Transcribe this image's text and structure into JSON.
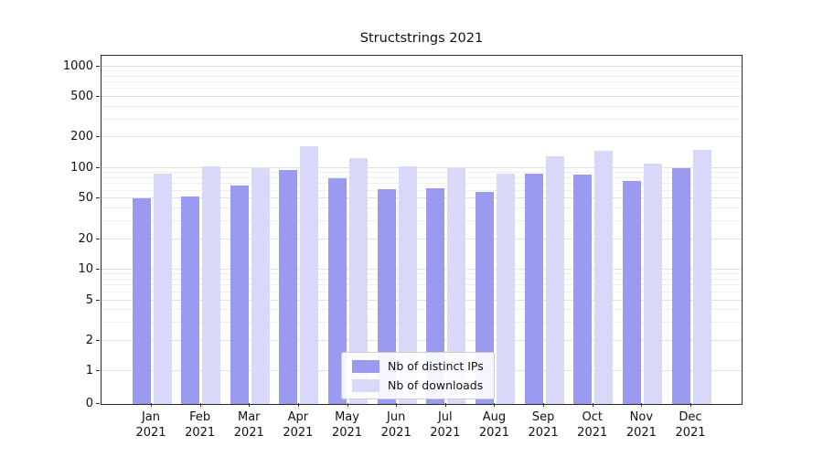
{
  "chart_data": {
    "type": "bar",
    "title": "Structstrings 2021",
    "categories": [
      "Jan",
      "Feb",
      "Mar",
      "Apr",
      "May",
      "Jun",
      "Jul",
      "Aug",
      "Sep",
      "Oct",
      "Nov",
      "Dec"
    ],
    "year_label": "2021",
    "series": [
      {
        "name": "Nb of distinct IPs",
        "color": "#9a9af0",
        "values": [
          50,
          53,
          68,
          95,
          80,
          62,
          63,
          58,
          88,
          86,
          75,
          100
        ]
      },
      {
        "name": "Nb of downloads",
        "color": "#d8d8f8",
        "values": [
          88,
          105,
          100,
          165,
          125,
          105,
          100,
          88,
          130,
          148,
          110,
          152
        ]
      }
    ],
    "yscale": "symlog",
    "yticks": [
      0,
      1,
      2,
      5,
      10,
      20,
      50,
      100,
      200,
      500,
      1000
    ],
    "ylim": [
      0,
      1000
    ],
    "grid": true,
    "legend_position": "lower center"
  }
}
